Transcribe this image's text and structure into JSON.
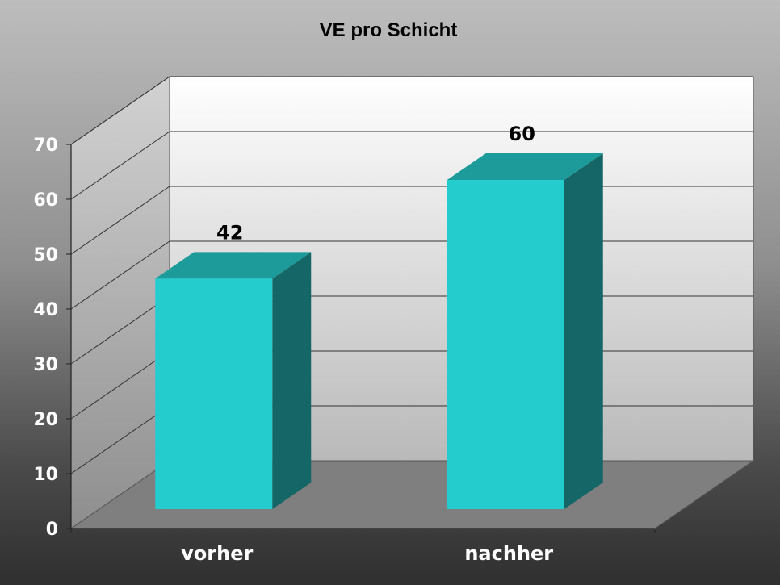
{
  "chart_data": {
    "type": "bar",
    "title": "VE pro Schicht",
    "categories": [
      "vorher",
      "nachher"
    ],
    "values": [
      42,
      60
    ],
    "data_labels": [
      "42",
      "60"
    ],
    "ylim": [
      0,
      70
    ],
    "yticks": [
      "0",
      "10",
      "20",
      "30",
      "40",
      "50",
      "60",
      "70"
    ],
    "grid": true,
    "legend": "none",
    "style": "3d-column",
    "colors": {
      "bar_front": "#25cccd",
      "bar_top": "#1c9b9a",
      "bar_side": "#156666"
    }
  }
}
